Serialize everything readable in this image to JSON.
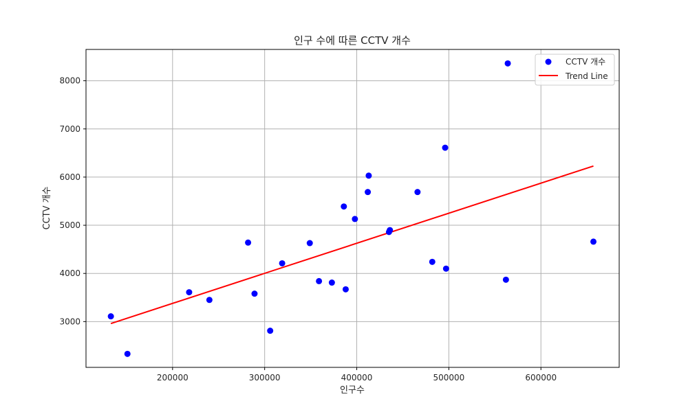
{
  "chart_data": {
    "type": "scatter",
    "title": "인구 수에 따른 CCTV 개수",
    "xlabel": "인구수",
    "ylabel": "CCTV 개수",
    "xlim": [
      106000,
      685000
    ],
    "ylim": [
      2050,
      8650
    ],
    "xticks": [
      200000,
      300000,
      400000,
      500000,
      600000
    ],
    "yticks": [
      3000,
      4000,
      5000,
      6000,
      7000,
      8000
    ],
    "grid": true,
    "legend": "top-right",
    "series": [
      {
        "name": "CCTV 개수",
        "kind": "scatter",
        "color": "#0000ff",
        "points": [
          [
            133000,
            3110
          ],
          [
            151000,
            2330
          ],
          [
            218000,
            3610
          ],
          [
            240000,
            3450
          ],
          [
            282000,
            4640
          ],
          [
            289000,
            3580
          ],
          [
            306000,
            2810
          ],
          [
            319000,
            4210
          ],
          [
            349000,
            4630
          ],
          [
            359000,
            3840
          ],
          [
            373000,
            3810
          ],
          [
            386000,
            5390
          ],
          [
            388000,
            3670
          ],
          [
            398000,
            5130
          ],
          [
            412000,
            5690
          ],
          [
            413000,
            6030
          ],
          [
            435000,
            4860
          ],
          [
            436000,
            4900
          ],
          [
            466000,
            5690
          ],
          [
            482000,
            4240
          ],
          [
            496000,
            6610
          ],
          [
            497000,
            4100
          ],
          [
            562000,
            3870
          ],
          [
            564000,
            8360
          ],
          [
            657000,
            4660
          ]
        ]
      },
      {
        "name": "Trend Line",
        "kind": "line",
        "color": "#ff0000",
        "points": [
          [
            133000,
            2960
          ],
          [
            657000,
            6230
          ]
        ]
      }
    ]
  }
}
